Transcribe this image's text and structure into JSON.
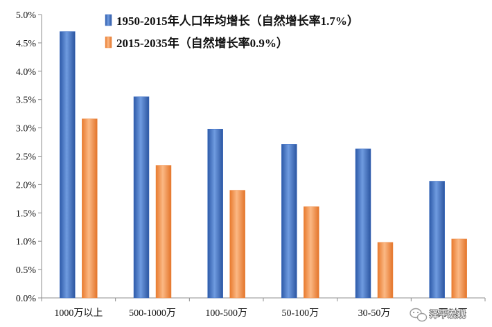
{
  "chart_data": {
    "type": "bar",
    "categories": [
      "1000万以上",
      "500-1000万",
      "100-500万",
      "50-100万",
      "30-50万",
      "30万以下"
    ],
    "series": [
      {
        "name": "1950-2015年人口年均增长（自然增长率1.7%）",
        "values": [
          4.7,
          3.55,
          2.98,
          2.71,
          2.63,
          2.06
        ]
      },
      {
        "name": "2015-2035年（自然增长率0.9%）",
        "values": [
          3.16,
          2.34,
          1.9,
          1.61,
          0.98,
          1.04
        ]
      }
    ],
    "yticks": [
      "0.0%",
      "0.5%",
      "1.0%",
      "1.5%",
      "2.0%",
      "2.5%",
      "3.0%",
      "3.5%",
      "4.0%",
      "4.5%",
      "5.0%"
    ],
    "ylim": [
      0,
      5.0
    ],
    "y_unit": "%",
    "grid": false,
    "legend_position": "top-right",
    "colors": {
      "series1": "#3f6fc4",
      "series2": "#ee8a44",
      "axis": "#8c8c8c"
    }
  },
  "watermark": {
    "text": "泽平宏观",
    "icon": "wechat-icon"
  }
}
